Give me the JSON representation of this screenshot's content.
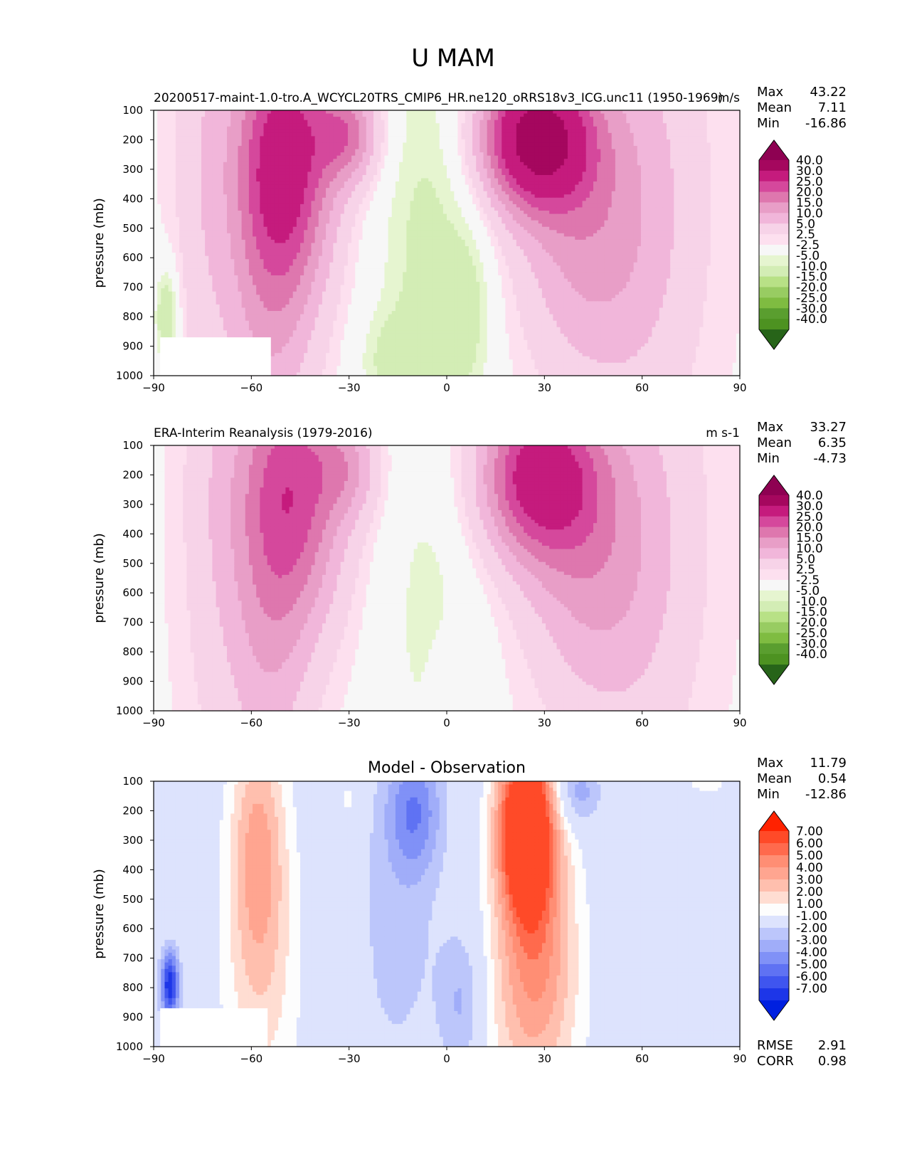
{
  "figure_title": "U MAM",
  "chart_data": [
    {
      "type": "contour",
      "left_title": "20200517-maint-1.0-tro.A_WCYCL20TRS_CMIP6_HR.ne120_oRRS18v3_ICG.unc11 (1950-1969)",
      "right_title": "m/s",
      "ylabel": "pressure (mb)",
      "xticks": [
        "−90",
        "−60",
        "−30",
        "0",
        "30",
        "60",
        "90"
      ],
      "yticks": [
        "100",
        "200",
        "300",
        "400",
        "500",
        "600",
        "700",
        "800",
        "900",
        "1000"
      ],
      "xlim": [
        -90,
        90
      ],
      "ylim": [
        1000,
        100
      ],
      "stats": [
        {
          "label": "Max",
          "value": "43.22"
        },
        {
          "label": "Mean",
          "value": "7.11"
        },
        {
          "label": "Min",
          "value": "-16.86"
        }
      ],
      "colorbar": {
        "labels": [
          "40.0",
          "30.0",
          "25.0",
          "20.0",
          "15.0",
          "10.0",
          "5.0",
          "2.5",
          "-2.5",
          "-5.0",
          "-10.0",
          "-15.0",
          "-20.0",
          "-25.0",
          "-30.0",
          "-40.0"
        ],
        "colors": [
          "#8e0152",
          "#a5075e",
          "#c51b7d",
          "#d5489c",
          "#de77ae",
          "#e89ec7",
          "#f1b6da",
          "#f7d3e8",
          "#fde0ef",
          "#f7f7f7",
          "#e6f5d0",
          "#d3edb5",
          "#b8e186",
          "#98cc62",
          "#7fbc41",
          "#5a9e2f",
          "#4d9221",
          "#276419"
        ]
      },
      "field": {
        "base": 1.5,
        "blobs": [
          {
            "x": -50,
            "p": 260,
            "sx": 11,
            "sp": 330,
            "a": 32
          },
          {
            "x": -30,
            "p": 180,
            "sx": 7,
            "sp": 120,
            "a": 18
          },
          {
            "x": -75,
            "p": 250,
            "sx": 7,
            "sp": 700,
            "a": 6
          },
          {
            "x": -55,
            "p": 850,
            "sx": 10,
            "sp": 400,
            "a": 10
          },
          {
            "x": 27,
            "p": 190,
            "sx": 12,
            "sp": 170,
            "a": 41
          },
          {
            "x": 40,
            "p": 520,
            "sx": 14,
            "sp": 330,
            "a": 12
          },
          {
            "x": 60,
            "p": 400,
            "sx": 15,
            "sp": 600,
            "a": 9
          },
          {
            "x": -5,
            "p": 600,
            "sx": 12,
            "sp": 600,
            "a": -8
          },
          {
            "x": 7,
            "p": 780,
            "sx": 5,
            "sp": 200,
            "a": -5
          },
          {
            "x": -18,
            "p": 950,
            "sx": 7,
            "sp": 120,
            "a": -5
          },
          {
            "x": -86,
            "p": 800,
            "sx": 2.5,
            "sp": 120,
            "a": -12
          }
        ]
      },
      "mask": {
        "x0": -88,
        "x1": -54,
        "p0": 870,
        "p1": 1000
      }
    },
    {
      "type": "contour",
      "left_title": "ERA-Interim Reanalysis (1979-2016)",
      "right_title": "m s-1",
      "ylabel": "pressure (mb)",
      "xticks": [
        "−90",
        "−60",
        "−30",
        "0",
        "30",
        "60",
        "90"
      ],
      "yticks": [
        "100",
        "200",
        "300",
        "400",
        "500",
        "600",
        "700",
        "800",
        "900",
        "1000"
      ],
      "xlim": [
        -90,
        90
      ],
      "ylim": [
        1000,
        100
      ],
      "stats": [
        {
          "label": "Max",
          "value": "33.27"
        },
        {
          "label": "Mean",
          "value": "6.35"
        },
        {
          "label": "Min",
          "value": "-4.73"
        }
      ],
      "colorbar": {
        "labels": [
          "40.0",
          "30.0",
          "25.0",
          "20.0",
          "15.0",
          "10.0",
          "5.0",
          "2.5",
          "-2.5",
          "-5.0",
          "-10.0",
          "-15.0",
          "-20.0",
          "-25.0",
          "-30.0",
          "-40.0"
        ],
        "colors": [
          "#8e0152",
          "#a5075e",
          "#c51b7d",
          "#d5489c",
          "#de77ae",
          "#e89ec7",
          "#f1b6da",
          "#f7d3e8",
          "#fde0ef",
          "#f7f7f7",
          "#e6f5d0",
          "#d3edb5",
          "#b8e186",
          "#98cc62",
          "#7fbc41",
          "#5a9e2f",
          "#4d9221",
          "#276419"
        ]
      },
      "field": {
        "base": 1.5,
        "blobs": [
          {
            "x": -48,
            "p": 250,
            "sx": 12,
            "sp": 340,
            "a": 26
          },
          {
            "x": -30,
            "p": 180,
            "sx": 7,
            "sp": 120,
            "a": 10
          },
          {
            "x": -72,
            "p": 300,
            "sx": 8,
            "sp": 700,
            "a": 5
          },
          {
            "x": -55,
            "p": 850,
            "sx": 9,
            "sp": 400,
            "a": 9
          },
          {
            "x": 28,
            "p": 200,
            "sx": 13,
            "sp": 200,
            "a": 31
          },
          {
            "x": 42,
            "p": 520,
            "sx": 14,
            "sp": 330,
            "a": 11
          },
          {
            "x": 60,
            "p": 400,
            "sx": 15,
            "sp": 600,
            "a": 8
          },
          {
            "x": -5,
            "p": 650,
            "sx": 12,
            "sp": 550,
            "a": -5
          },
          {
            "x": 0,
            "p": 950,
            "sx": 4,
            "sp": 150,
            "a": 3
          }
        ]
      },
      "mask": null
    },
    {
      "type": "contour",
      "center_title": "Model - Observation",
      "ylabel": "pressure (mb)",
      "xticks": [
        "−90",
        "−60",
        "−30",
        "0",
        "30",
        "60",
        "90"
      ],
      "yticks": [
        "100",
        "200",
        "300",
        "400",
        "500",
        "600",
        "700",
        "800",
        "900",
        "1000"
      ],
      "xlim": [
        -90,
        90
      ],
      "ylim": [
        1000,
        100
      ],
      "stats": [
        {
          "label": "Max",
          "value": "11.79"
        },
        {
          "label": "Mean",
          "value": "0.54"
        },
        {
          "label": "Min",
          "value": "-12.86"
        }
      ],
      "bottom_stats": [
        {
          "label": "RMSE",
          "value": "2.91"
        },
        {
          "label": "CORR",
          "value": "0.98"
        }
      ],
      "colorbar": {
        "labels": [
          "7.00",
          "6.00",
          "5.00",
          "4.00",
          "3.00",
          "2.00",
          "1.00",
          "-1.00",
          "-2.00",
          "-3.00",
          "-4.00",
          "-5.00",
          "-6.00",
          "-7.00"
        ],
        "colors": [
          "#ff2200",
          "#ff4a28",
          "#ff6a4d",
          "#ff8e74",
          "#ffa590",
          "#ffbfae",
          "#ffddd2",
          "#fdfdfd",
          "#dde3fd",
          "#bcc6fb",
          "#a0adf9",
          "#8091f7",
          "#5f72f3",
          "#3f55ef",
          "#1d36e8",
          "#0020e0"
        ]
      },
      "field": {
        "base": 0.0,
        "blobs": [
          {
            "x": 24,
            "p": 250,
            "sx": 6,
            "sp": 200,
            "a": 10
          },
          {
            "x": 28,
            "p": 550,
            "sx": 8,
            "sp": 350,
            "a": 3.5
          },
          {
            "x": 25,
            "p": 850,
            "sx": 12,
            "sp": 300,
            "a": 2.5
          },
          {
            "x": -58,
            "p": 300,
            "sx": 6,
            "sp": 300,
            "a": 3.5
          },
          {
            "x": -57,
            "p": 750,
            "sx": 9,
            "sp": 400,
            "a": 2.3
          },
          {
            "x": -10,
            "p": 200,
            "sx": 6,
            "sp": 150,
            "a": -3.5
          },
          {
            "x": -15,
            "p": 600,
            "sx": 10,
            "sp": 400,
            "a": -1.4
          },
          {
            "x": 5,
            "p": 850,
            "sx": 5,
            "sp": 180,
            "a": -2.5
          },
          {
            "x": 40,
            "p": 140,
            "sx": 5,
            "sp": 80,
            "a": -3
          },
          {
            "x": -85,
            "p": 790,
            "sx": 2,
            "sp": 80,
            "a": -7
          },
          {
            "x": -30,
            "p": 160,
            "sx": 3,
            "sp": 60,
            "a": 1.4
          },
          {
            "x": 80,
            "p": 100,
            "sx": 6,
            "sp": 40,
            "a": 1.4
          }
        ]
      },
      "mask": {
        "x0": -88,
        "x1": -55,
        "p0": 870,
        "p1": 1000
      }
    }
  ]
}
